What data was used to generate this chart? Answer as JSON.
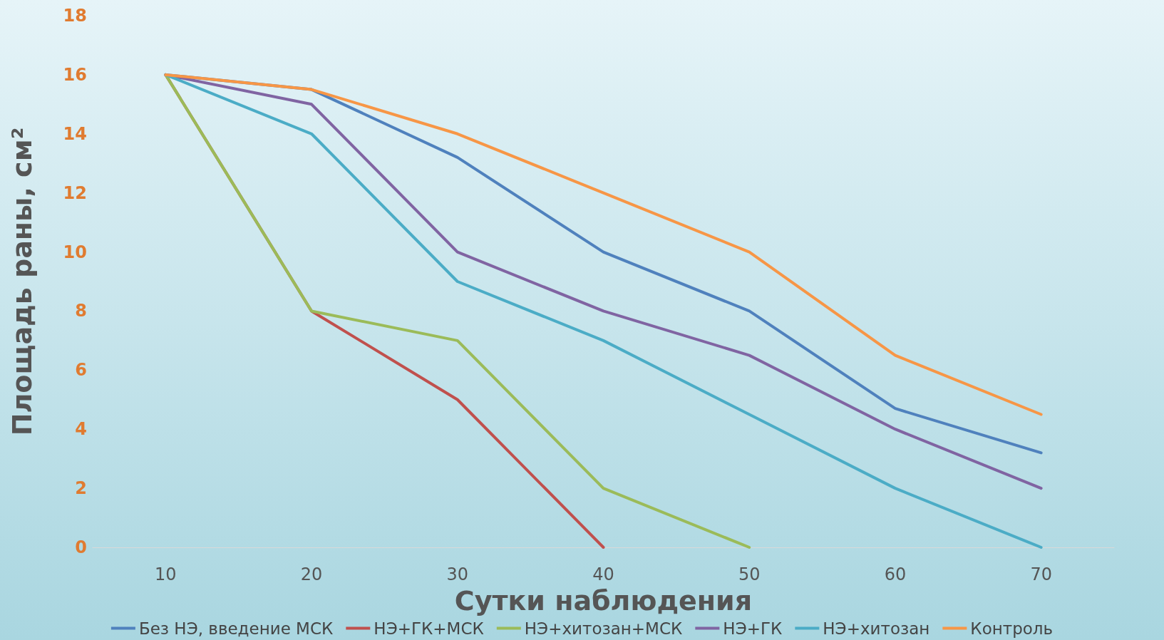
{
  "chart_data": {
    "type": "line",
    "xlabel": "Сутки наблюдения",
    "ylabel": "Площадь раны, см²",
    "categories": [
      "10",
      "20",
      "30",
      "40",
      "50",
      "60",
      "70"
    ],
    "series": [
      {
        "name": "Без НЭ, введение МСК",
        "color": "#4f81bd",
        "values": [
          16,
          15.5,
          13.2,
          10,
          8,
          4.7,
          3.2
        ]
      },
      {
        "name": "НЭ+ГК+МСК",
        "color": "#c0504d",
        "values": [
          16,
          8,
          5,
          0,
          null,
          null,
          null
        ]
      },
      {
        "name": "НЭ+хитозан+МСК",
        "color": "#9bbb59",
        "values": [
          16,
          8,
          7,
          2,
          0,
          null,
          null
        ]
      },
      {
        "name": "НЭ+ГК",
        "color": "#8064a2",
        "values": [
          16,
          15,
          10,
          8,
          6.5,
          4,
          2
        ]
      },
      {
        "name": "НЭ+хитозан",
        "color": "#4bacc6",
        "values": [
          16,
          14,
          9,
          7,
          4.5,
          2,
          0
        ]
      },
      {
        "name": "Контроль",
        "color": "#f79646",
        "values": [
          16,
          15.5,
          14,
          12,
          10,
          6.5,
          4.5
        ]
      }
    ],
    "ylim": [
      0,
      18
    ],
    "yticks": [
      0,
      2,
      4,
      6,
      8,
      10,
      12,
      14,
      16,
      18
    ],
    "grid": false,
    "legend": "bottom",
    "marker": "none",
    "line_style": "solid"
  }
}
